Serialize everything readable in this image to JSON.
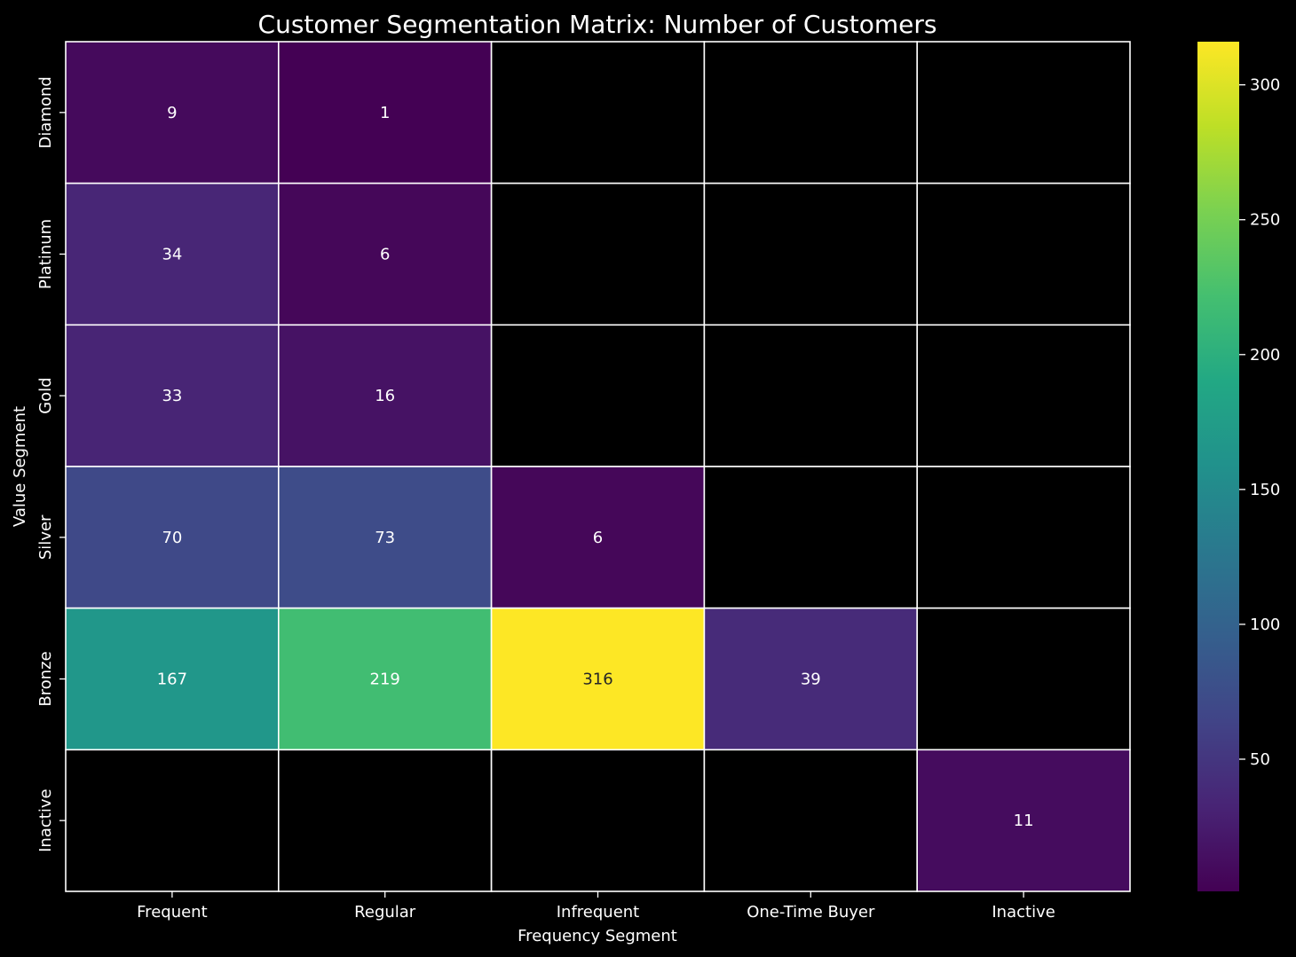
{
  "chart_data": {
    "type": "heatmap",
    "title": "Customer Segmentation Matrix: Number of Customers",
    "xlabel": "Frequency Segment",
    "ylabel": "Value Segment",
    "x_categories": [
      "Frequent",
      "Regular",
      "Infrequent",
      "One-Time Buyer",
      "Inactive"
    ],
    "y_categories": [
      "Diamond",
      "Platinum",
      "Gold",
      "Silver",
      "Bronze",
      "Inactive"
    ],
    "values": [
      [
        9,
        1,
        null,
        null,
        null
      ],
      [
        34,
        6,
        null,
        null,
        null
      ],
      [
        33,
        16,
        null,
        null,
        null
      ],
      [
        70,
        73,
        6,
        null,
        null
      ],
      [
        167,
        219,
        316,
        39,
        null
      ],
      [
        null,
        null,
        null,
        null,
        11
      ]
    ],
    "value_range": [
      1,
      316
    ],
    "colormap": "viridis",
    "missing_color": "#000000",
    "gridline_color": "#ffffff",
    "colorbar": {
      "ticks": [
        50,
        100,
        150,
        200,
        250,
        300
      ],
      "placement": "right"
    },
    "annotations": "cell values",
    "grid": false
  }
}
